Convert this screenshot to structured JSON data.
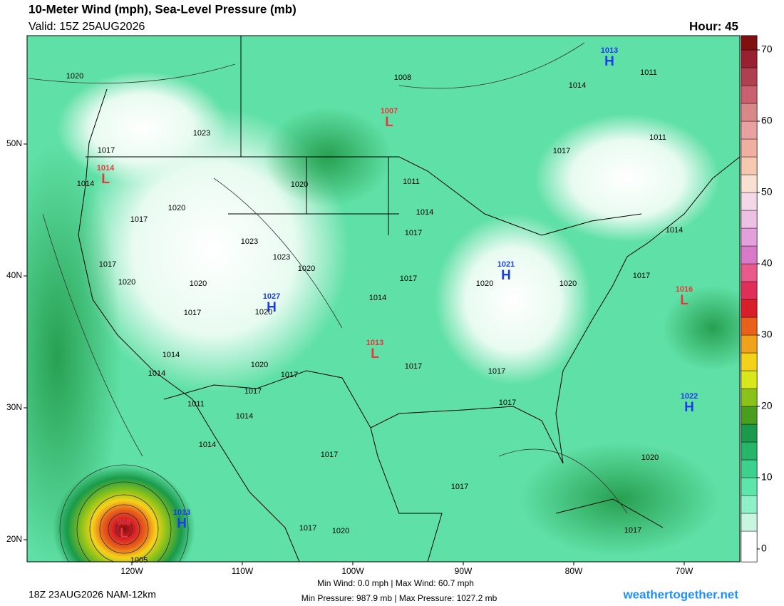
{
  "header": {
    "title": "10-Meter Wind (mph), Sea-Level Pressure (mb)",
    "valid": "Valid: 15Z 25AUG2026",
    "hour": "Hour: 45"
  },
  "map": {
    "lon_ticks": [
      {
        "value": -120,
        "label": "120W"
      },
      {
        "value": -110,
        "label": "110W"
      },
      {
        "value": -100,
        "label": "100W"
      },
      {
        "value": -90,
        "label": "90W"
      },
      {
        "value": -80,
        "label": "80W"
      },
      {
        "value": -70,
        "label": "70W"
      }
    ],
    "lat_ticks": [
      {
        "value": 50,
        "label": "50N"
      },
      {
        "value": 40,
        "label": "40N"
      },
      {
        "value": 30,
        "label": "30N"
      },
      {
        "value": 20,
        "label": "20N"
      }
    ],
    "colorbar_ticks": [
      0,
      10,
      20,
      30,
      40,
      50,
      60,
      70
    ],
    "centers": [
      {
        "letter": "H",
        "pressure": 1013
      },
      {
        "letter": "L",
        "pressure": 1007
      },
      {
        "letter": "L",
        "pressure": 1014
      },
      {
        "letter": "H",
        "pressure": 1021
      },
      {
        "letter": "L",
        "pressure": 1016
      },
      {
        "letter": "H",
        "pressure": 1027
      },
      {
        "letter": "L",
        "pressure": 1013
      },
      {
        "letter": "H",
        "pressure": 1022
      },
      {
        "letter": "H",
        "pressure": 1013
      },
      {
        "letter": "L",
        "pressure": 988
      }
    ],
    "isobar_labels": [
      1020,
      1008,
      1011,
      1014,
      1023,
      1017,
      1011,
      1017,
      1014,
      1020,
      1011,
      1020,
      1017,
      1014,
      1017,
      1014,
      1023,
      1023,
      1020,
      1017,
      1017,
      1020,
      1020,
      1020,
      1020,
      1017,
      1014,
      1020,
      1017,
      1014,
      1014,
      1020,
      1017,
      1017,
      1017,
      1017,
      1017,
      1011,
      1014,
      1014,
      1017,
      1020,
      1017,
      1017,
      1020,
      1017,
      1005
    ]
  },
  "footer": {
    "run": "18Z 23AUG2026 NAM-12km",
    "wind": "Min Wind:  0.0 mph | Max Wind: 60.7 mph",
    "pressure": "Min Pressure: 987.9 mb | Max Pressure: 1027.2 mb",
    "site": "weathertogether.net"
  }
}
